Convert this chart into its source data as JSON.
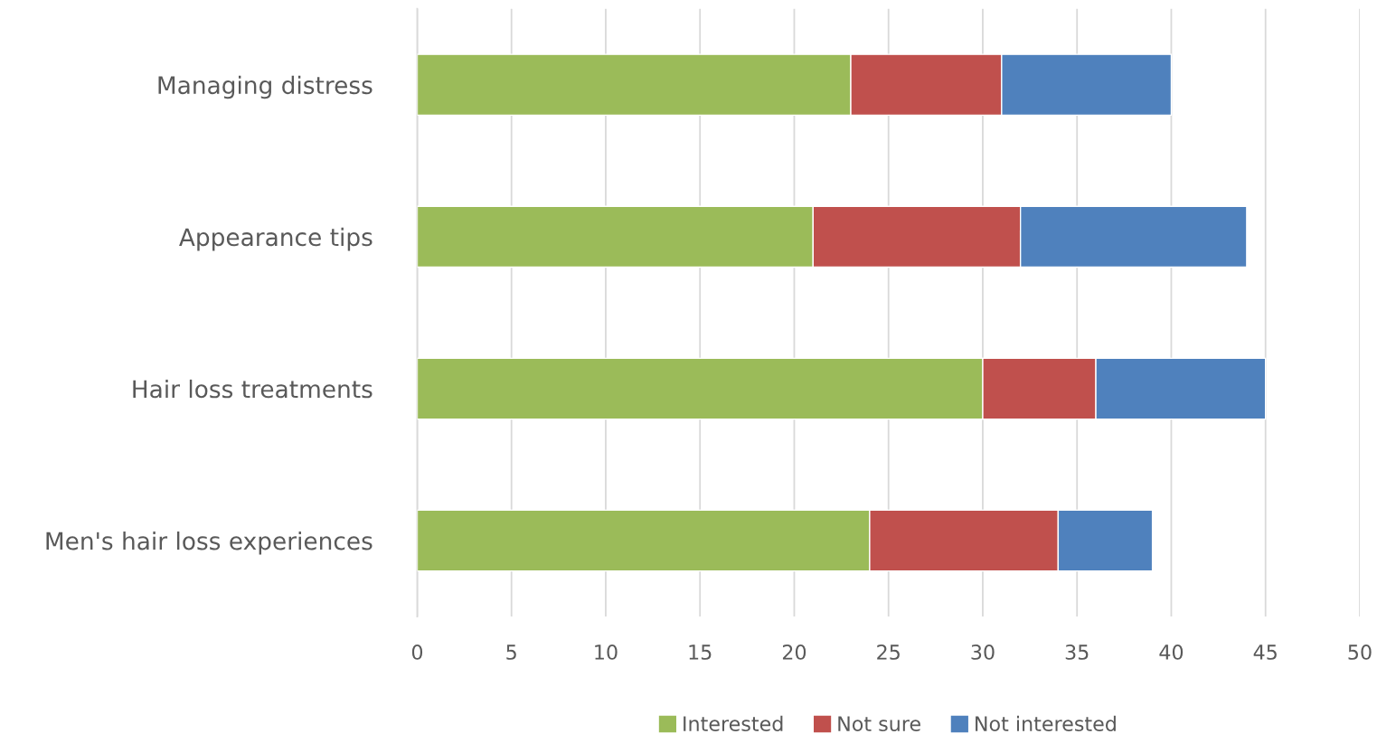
{
  "chart_data": {
    "type": "bar",
    "orientation": "horizontal",
    "stacked": true,
    "categories": [
      "Managing distress",
      "Appearance tips",
      "Hair loss treatments",
      "Men's hair loss experiences"
    ],
    "series": [
      {
        "name": "Interested",
        "color": "#9bbb59",
        "values": [
          23,
          21,
          30,
          24
        ]
      },
      {
        "name": "Not sure",
        "color": "#c0504d",
        "values": [
          8,
          11,
          6,
          10
        ]
      },
      {
        "name": "Not interested",
        "color": "#4f81bd",
        "values": [
          9,
          12,
          9,
          5
        ]
      }
    ],
    "xlim": [
      0,
      50
    ],
    "xticks": [
      0,
      5,
      10,
      15,
      20,
      25,
      30,
      35,
      40,
      45,
      50
    ],
    "grid": "x",
    "legend": "bottom"
  }
}
